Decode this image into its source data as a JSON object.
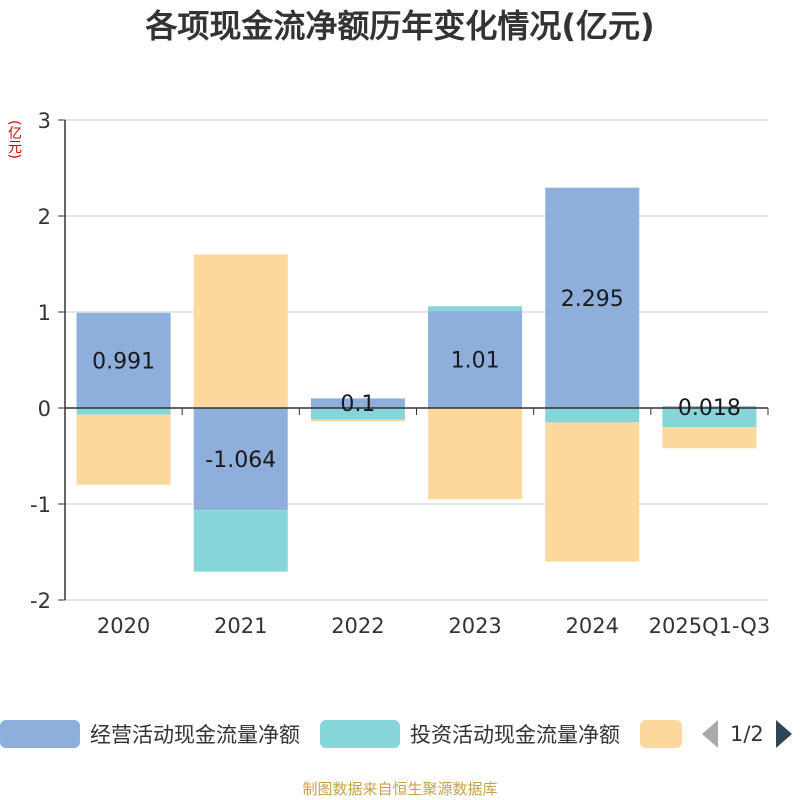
{
  "chart_data": {
    "type": "bar",
    "stacked": true,
    "title": "各项现金流净额历年变化情况(亿元)",
    "ylabel": "(亿元)",
    "ylim": [
      -2,
      3
    ],
    "yticks": [
      -2,
      -1,
      0,
      1,
      2,
      3
    ],
    "grid": true,
    "categories": [
      "2020",
      "2021",
      "2022",
      "2023",
      "2024",
      "2025Q1-Q3"
    ],
    "series": [
      {
        "name": "经营活动现金流量净额",
        "color": "#8eaedb",
        "values": [
          0.991,
          -1.064,
          0.1,
          1.01,
          2.295,
          0.018
        ]
      },
      {
        "name": "投资活动现金流量净额",
        "color": "#86d5d8",
        "values": [
          -0.07,
          -0.64,
          -0.12,
          0.05,
          -0.15,
          -0.2
        ]
      },
      {
        "name": "",
        "color": "#fdd89c",
        "values": [
          -0.73,
          1.6,
          -0.02,
          -0.95,
          -1.45,
          -0.22
        ]
      }
    ],
    "data_labels": [
      "0.991",
      "-1.064",
      "0.1",
      "1.01",
      "2.295",
      "0.018"
    ],
    "legend_position": "bottom"
  },
  "legend": {
    "items": [
      {
        "label": "经营活动现金流量净额",
        "color": "#8eaedb"
      },
      {
        "label": "投资活动现金流量净额",
        "color": "#86d5d8"
      },
      {
        "label": "",
        "color": "#fdd89c"
      }
    ],
    "page_text": "1/2"
  },
  "source_text": "制图数据来自恒生聚源数据库"
}
